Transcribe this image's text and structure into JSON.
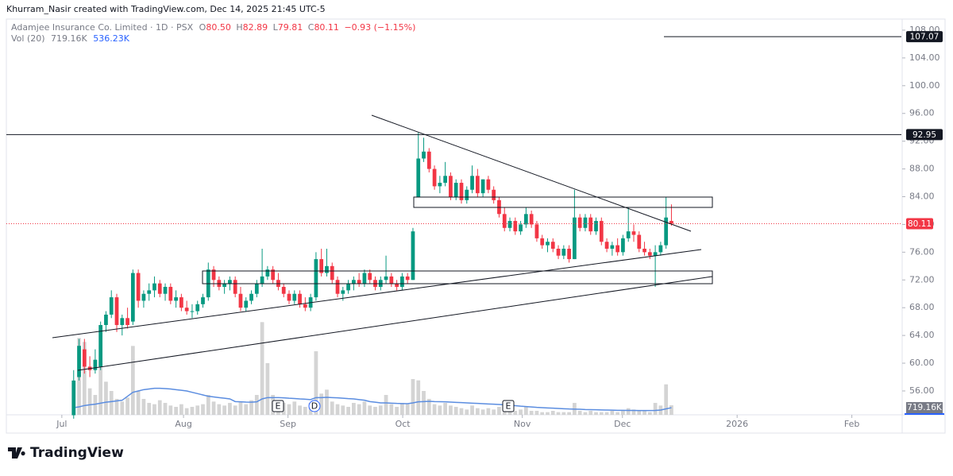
{
  "header": {
    "credit": "Khurram_Nasir created with TradingView.com, Dec 14, 2025 21:45 UTC-5",
    "brand": "TradingView"
  },
  "legend": {
    "symbol": "Adamjee Insurance Co. Limited · 1D · PSX",
    "o": "O",
    "o_value": "80.50",
    "h": "H",
    "h_value": "82.89",
    "l": "L",
    "l_value": "79.81",
    "c": "C",
    "c_value": "80.11",
    "change": "−0.93 (−1.15%)",
    "vol_name": "Vol (20)",
    "vol_value": "719.16K",
    "vol_ma_value": "536.23K"
  },
  "events": [
    "E",
    "D",
    "E"
  ],
  "chart_data": {
    "type": "candlestick",
    "up_color": "#089981",
    "down_color": "#f23645",
    "volume_color": "#c9c9c9",
    "ma_color": "#5b8de0",
    "xlim": [
      -12.5,
      153.7
    ],
    "xticks": [
      {
        "value": -2.2,
        "label": "Jul"
      },
      {
        "value": 20.4,
        "label": "Aug"
      },
      {
        "value": 39.8,
        "label": "Sep"
      },
      {
        "value": 61.1,
        "label": "Oct"
      },
      {
        "value": 83.3,
        "label": "Nov"
      },
      {
        "value": 101.9,
        "label": "Dec"
      },
      {
        "value": 123.2,
        "label": "2026"
      },
      {
        "value": 144.5,
        "label": "Feb"
      }
    ],
    "ylim": [
      52.56,
      109.6
    ],
    "yticks": [
      {
        "value": 56,
        "label": "56.00"
      },
      {
        "value": 60,
        "label": "60.00"
      },
      {
        "value": 64,
        "label": "64.00"
      },
      {
        "value": 68,
        "label": "68.00"
      },
      {
        "value": 72,
        "label": "72.00"
      },
      {
        "value": 76,
        "label": "76.00"
      },
      {
        "value": 80,
        "label": "80.00"
      },
      {
        "value": 84,
        "label": "84.00"
      },
      {
        "value": 88,
        "label": "88.00"
      },
      {
        "value": 92,
        "label": "92.00"
      },
      {
        "value": 96,
        "label": "96.00"
      },
      {
        "value": 100,
        "label": "100.00"
      },
      {
        "value": 104,
        "label": "104.00"
      },
      {
        "value": 108,
        "label": "108.00"
      }
    ],
    "levels": [
      107.07,
      92.95
    ],
    "open": [
      52.5,
      58,
      62,
      59.5,
      59,
      59.5,
      65.5,
      67,
      69.5,
      65.5,
      66.5,
      66,
      73,
      69,
      70,
      70.5,
      71.5,
      70,
      71,
      69,
      69.5,
      68,
      67.5,
      67.5,
      68.5,
      69.5,
      73.5,
      72,
      71,
      71.5,
      72,
      70,
      68,
      69,
      70,
      71.5,
      72.5,
      73.5,
      72,
      71,
      70,
      69,
      70,
      68.5,
      68,
      69.5,
      75,
      73,
      74,
      72,
      70,
      70.5,
      71.5,
      72,
      71.5,
      73,
      72,
      71,
      72,
      72.5,
      71.5,
      71,
      72.5,
      72,
      84,
      89.5,
      90.5,
      88,
      85.5,
      86,
      87,
      84,
      86,
      83.5,
      85,
      87,
      84.5,
      86.5,
      85,
      83.5,
      81.5,
      79.5,
      80.5,
      79,
      80,
      81.5,
      80,
      78,
      77,
      77.5,
      76.5,
      75.5,
      76.5,
      75,
      81,
      79.5,
      81,
      79,
      80.5,
      77.5,
      76.5,
      77,
      76,
      78,
      79,
      78.5,
      76.5,
      76,
      75.5,
      76,
      77,
      80.5
    ],
    "high": [
      59,
      63.5,
      63.5,
      61,
      62,
      66,
      67.5,
      70.5,
      70,
      67,
      68,
      73.5,
      73.5,
      70.5,
      71.5,
      72.5,
      72,
      71.5,
      71.5,
      70.5,
      70,
      69,
      68.5,
      69,
      70,
      74.5,
      74,
      72.5,
      72,
      72.5,
      72.5,
      71,
      69.5,
      70.5,
      72,
      76.5,
      74,
      74,
      73,
      71.5,
      70.5,
      70.5,
      70.5,
      69.5,
      70,
      76,
      76.5,
      76.5,
      74.5,
      72.5,
      71,
      72,
      72.5,
      73,
      73.5,
      73.5,
      72.5,
      72.5,
      75.5,
      73,
      72,
      73,
      73,
      79.5,
      93.2,
      92.5,
      91,
      88.5,
      87,
      89,
      87.5,
      86.5,
      86.5,
      85.5,
      88.5,
      88,
      86.5,
      87,
      85.5,
      84,
      82.5,
      81,
      81,
      80.5,
      82.5,
      82,
      80.5,
      78.5,
      78,
      78,
      77,
      77,
      77,
      85,
      81.5,
      81.5,
      81.5,
      81,
      81,
      78,
      77.5,
      78,
      78.5,
      82.5,
      80,
      79,
      77.5,
      76.5,
      77,
      77.5,
      84,
      82.89
    ],
    "low": [
      52,
      57.5,
      58.5,
      58,
      58.5,
      59,
      64.5,
      66.5,
      64.5,
      64,
      65,
      65.5,
      68,
      68,
      69,
      69.5,
      69.5,
      69,
      68.5,
      68,
      67.5,
      67,
      66.5,
      67,
      68,
      69,
      71,
      70.5,
      70,
      70.5,
      69.5,
      67.5,
      67.5,
      68.5,
      69.5,
      71,
      72,
      71.5,
      70.5,
      69.5,
      68.5,
      68.5,
      68,
      67.5,
      67.5,
      69,
      72.5,
      72.5,
      71.5,
      69.5,
      69,
      70,
      70.5,
      71,
      71,
      71.5,
      70.5,
      70.5,
      71.5,
      71,
      70.5,
      70.5,
      71.5,
      72,
      84,
      89,
      87.5,
      85,
      84.5,
      85.5,
      83.5,
      83.5,
      83,
      83,
      84.5,
      84,
      84,
      84.5,
      83,
      81,
      79,
      79,
      78.5,
      78.5,
      79.5,
      79.5,
      77.5,
      76.5,
      76,
      76,
      75,
      75,
      74.5,
      75,
      79,
      79,
      78.5,
      78.5,
      77,
      76,
      75.5,
      75.5,
      75.5,
      77.5,
      77.5,
      76,
      75.5,
      75,
      71,
      75.5,
      76.5,
      79.81
    ],
    "close": [
      57.5,
      62.5,
      59.5,
      59,
      60.5,
      65.5,
      67,
      69.5,
      65.5,
      66.5,
      65.5,
      73,
      69,
      70,
      70.5,
      71.5,
      70,
      71,
      69,
      69.5,
      68,
      67.5,
      67.5,
      68.5,
      69.5,
      73.5,
      72,
      71,
      71.5,
      72,
      70,
      68,
      69,
      70,
      71.5,
      72.5,
      73.5,
      72,
      71,
      70,
      69,
      70,
      68.5,
      68,
      69.5,
      75,
      73,
      74,
      72,
      70,
      70.5,
      71.5,
      72,
      71.5,
      73,
      72,
      71,
      72,
      72.5,
      71.5,
      71,
      72.5,
      72,
      79,
      89.5,
      90.5,
      88,
      85.5,
      86,
      87,
      84,
      86,
      83.5,
      85,
      87,
      84.5,
      86.5,
      85,
      83.5,
      81.5,
      79.5,
      80.5,
      79,
      80,
      81.5,
      80,
      78,
      77,
      77.5,
      76.5,
      75.5,
      76.5,
      75,
      81,
      79.5,
      81,
      79,
      80.5,
      77.5,
      76.5,
      77,
      76,
      78,
      79,
      78.5,
      76.5,
      76,
      75.5,
      76,
      77,
      81,
      80.11
    ],
    "volume_ylim": [
      0,
      29880
    ],
    "volume": [
      2400,
      5800,
      5500,
      2000,
      1500,
      4000,
      2500,
      1800,
      1200,
      1000,
      1300,
      5200,
      1800,
      1200,
      900,
      800,
      1100,
      900,
      700,
      600,
      800,
      500,
      600,
      700,
      800,
      1500,
      1000,
      800,
      700,
      900,
      700,
      1000,
      800,
      1100,
      1500,
      7000,
      3900,
      1500,
      1000,
      900,
      800,
      1000,
      700,
      600,
      900,
      4800,
      1600,
      1900,
      1000,
      800,
      700,
      600,
      900,
      800,
      1000,
      700,
      600,
      700,
      1500,
      800,
      600,
      900,
      800,
      2700,
      2600,
      1800,
      1200,
      800,
      700,
      900,
      700,
      600,
      500,
      400,
      700,
      500,
      400,
      500,
      400,
      600,
      500,
      300,
      300,
      400,
      600,
      300,
      300,
      200,
      200,
      300,
      200,
      200,
      200,
      900,
      300,
      200,
      300,
      200,
      200,
      200,
      300,
      200,
      300,
      500,
      400,
      300,
      300,
      200,
      900,
      700,
      2300,
      719.16
    ],
    "volume_ma": [
      540,
      600,
      700,
      760,
      800,
      880,
      950,
      1000,
      1050,
      1100,
      1400,
      1700,
      1800,
      1900,
      1950,
      2000,
      2000,
      1980,
      1950,
      1900,
      1850,
      1800,
      1700,
      1600,
      1500,
      1400,
      1350,
      1300,
      1250,
      1200,
      1000,
      980,
      960,
      950,
      980,
      1200,
      1300,
      1300,
      1300,
      1280,
      1250,
      1230,
      1200,
      1180,
      1150,
      1300,
      1300,
      1320,
      1300,
      1280,
      1250,
      1220,
      1200,
      1150,
      1100,
      1000,
      950,
      900,
      900,
      880,
      860,
      850,
      840,
      900,
      980,
      1000,
      1020,
      1000,
      990,
      980,
      960,
      940,
      920,
      900,
      880,
      860,
      840,
      820,
      800,
      780,
      760,
      720,
      690,
      650,
      620,
      590,
      560,
      540,
      520,
      500,
      480,
      460,
      440,
      430,
      420,
      400,
      390,
      380,
      370,
      360,
      350,
      340,
      340,
      330,
      330,
      320,
      320,
      320,
      330,
      360,
      450,
      536.23
    ]
  }
}
